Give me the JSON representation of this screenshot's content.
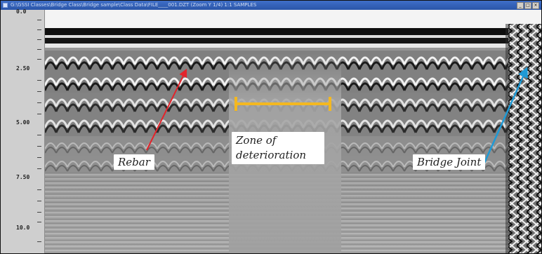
{
  "window": {
    "title": "G:\\GSSI Classes\\Bridge Class\\Bridge sample\\Class Data\\FILE____001.DZT (Zoom Y 1/4) 1:1 SAMPLES",
    "controls": [
      "_",
      "□",
      "×"
    ]
  },
  "depth_axis": {
    "labels": [
      "0.0",
      "2.50",
      "5.00",
      "7.50",
      "10.0"
    ]
  },
  "annotations": {
    "rebar": "Rebar",
    "zone": "Zone of deterioration",
    "joint": "Bridge Joint"
  },
  "colors": {
    "rebar_arrow": "#e3242b",
    "zone_marker": "#f4b820",
    "joint_arrow": "#1e9ad6"
  }
}
